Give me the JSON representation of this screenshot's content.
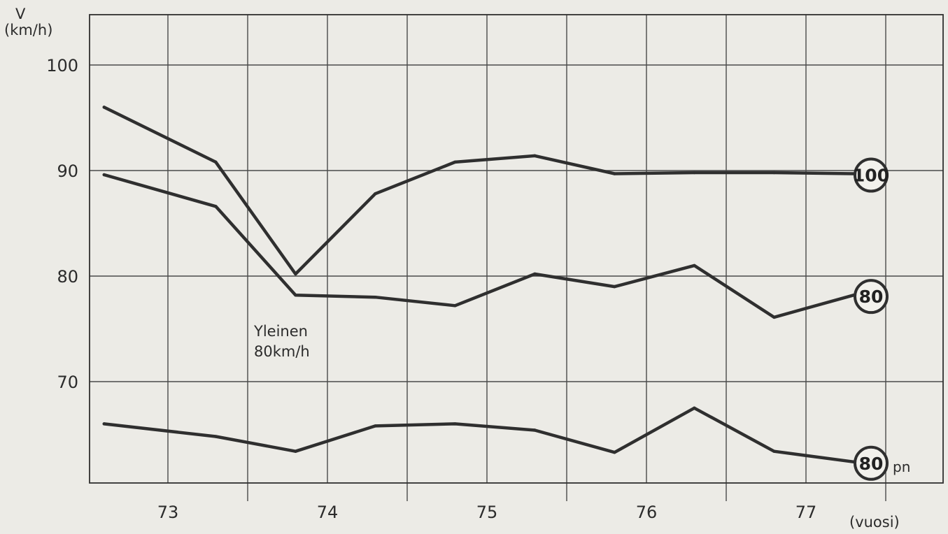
{
  "chart_data": {
    "type": "line",
    "title": "",
    "ylabel": "V",
    "ylabel_unit": "(km/h)",
    "xlabel": "(vuosi)",
    "ylim": [
      62,
      105
    ],
    "yticks": [
      70,
      80,
      90,
      100
    ],
    "xlim": [
      72.75,
      77.75
    ],
    "xticks": [
      73,
      74,
      75,
      76,
      77
    ],
    "grid": true,
    "series": [
      {
        "name": "100",
        "x": [
          72.6,
          73.3,
          73.8,
          74.3,
          74.8,
          75.3,
          75.8,
          76.3,
          76.8,
          77.3
        ],
        "y": [
          96.0,
          90.8,
          80.2,
          87.8,
          90.8,
          91.4,
          89.7,
          89.8,
          89.8,
          89.7
        ]
      },
      {
        "name": "80",
        "x": [
          72.6,
          73.3,
          73.8,
          74.3,
          74.8,
          75.3,
          75.8,
          76.3,
          76.8,
          77.3
        ],
        "y": [
          89.6,
          86.6,
          78.2,
          78.0,
          77.2,
          80.2,
          79.0,
          81.0,
          76.1,
          78.2
        ]
      },
      {
        "name": "80",
        "name_suffix": "pn",
        "x": [
          72.6,
          73.3,
          73.8,
          74.3,
          74.8,
          75.3,
          75.8,
          76.3,
          76.8,
          77.3
        ],
        "y": [
          66.0,
          64.8,
          63.4,
          65.8,
          66.0,
          65.4,
          63.3,
          67.5,
          63.4,
          62.4
        ]
      }
    ],
    "annotations": [
      {
        "text_line1": "Yleinen",
        "text_line2": "80km/h"
      }
    ]
  }
}
